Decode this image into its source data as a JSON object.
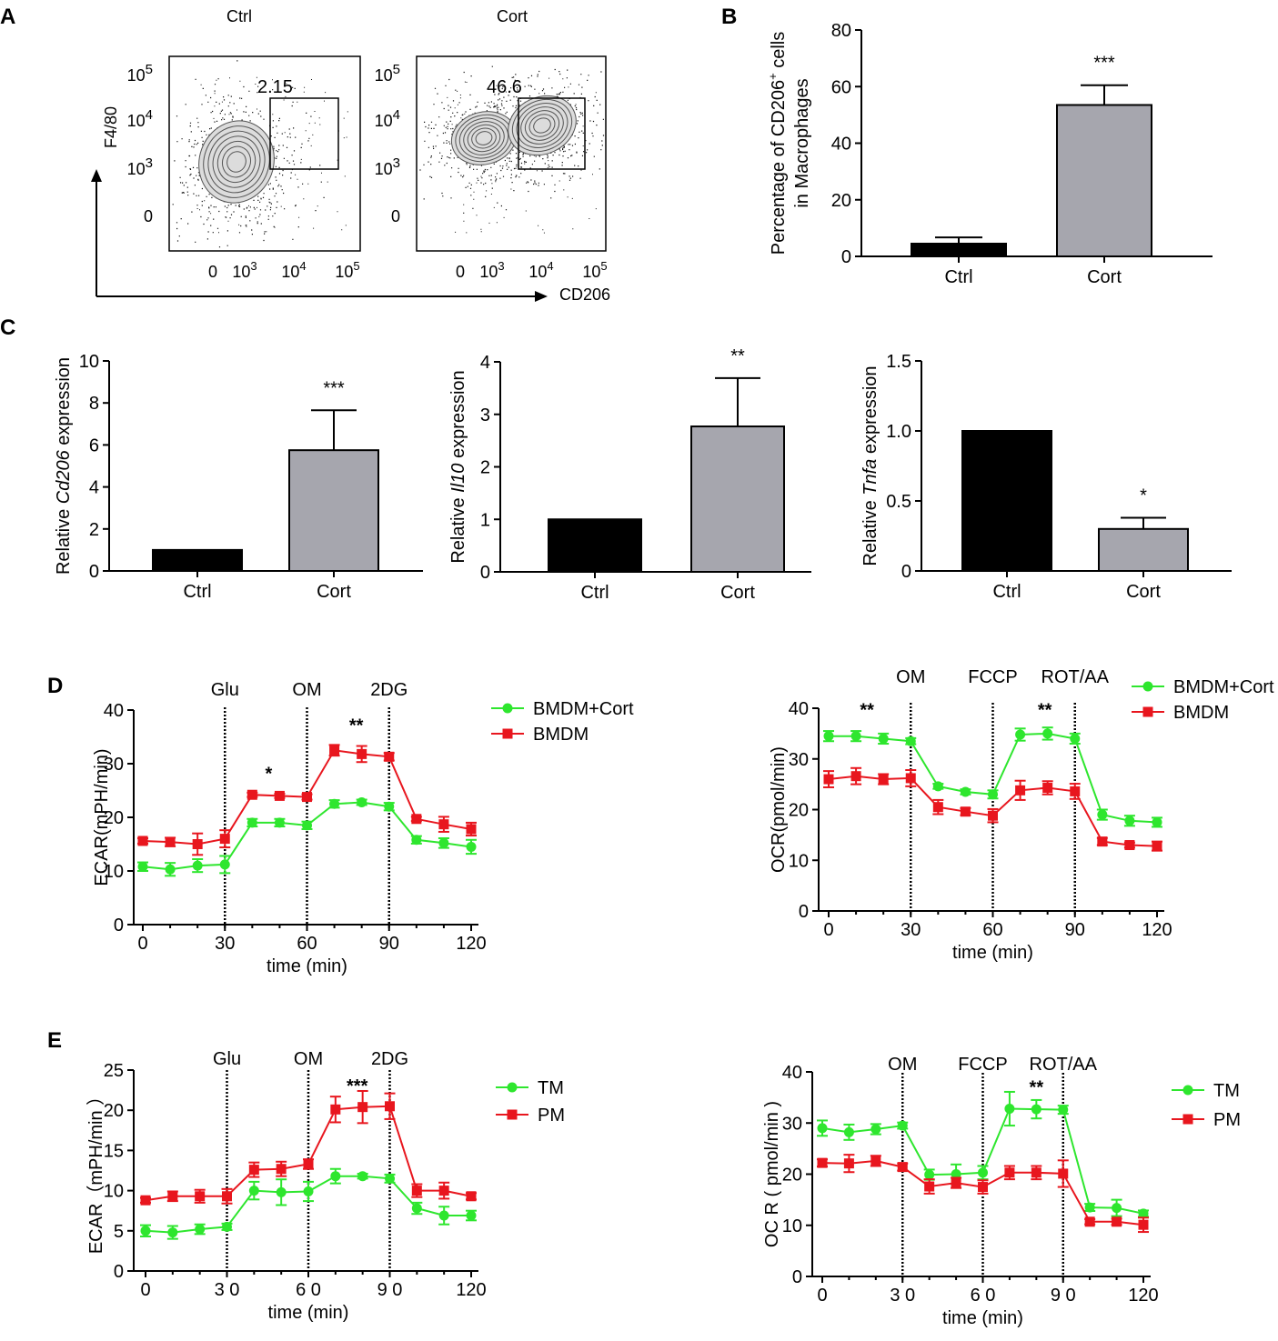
{
  "panels": {
    "A": "A",
    "B": "B",
    "C": "C",
    "D": "D",
    "E": "E"
  },
  "colors": {
    "green": "#2ee62e",
    "red": "#e8161e",
    "ctrl_bar": "#000000",
    "cort_bar": "#a6a6ae"
  },
  "flow": {
    "ctrl_title": "Ctrl",
    "cort_title": "Cort",
    "ylabel": "F4/80",
    "xlabel": "CD206",
    "ctrl_gate_pct": "2.15",
    "cort_gate_pct": "46.6",
    "ytick_labels": [
      {
        "base": "0",
        "exp": ""
      },
      {
        "base": "10",
        "exp": "3"
      },
      {
        "base": "10",
        "exp": "4"
      },
      {
        "base": "10",
        "exp": "5"
      }
    ],
    "xtick_labels": [
      {
        "base": "0",
        "exp": ""
      },
      {
        "base": "10",
        "exp": "3"
      },
      {
        "base": "10",
        "exp": "4"
      },
      {
        "base": "10",
        "exp": "5"
      }
    ]
  },
  "chart_data": [
    {
      "id": "B",
      "type": "bar",
      "ylabel_line1": "Percentage of CD206",
      "ylabel_sup": "+",
      "ylabel_line1_end": " cells",
      "ylabel_line2": "in Macrophages",
      "categories": [
        "Ctrl",
        "Cort"
      ],
      "values": [
        4.5,
        53.5
      ],
      "errors": [
        2.2,
        7.0
      ],
      "ylim": [
        0,
        80
      ],
      "yticks": [
        "0",
        "20",
        "40",
        "60",
        "80"
      ],
      "significance": "***"
    },
    {
      "id": "C1",
      "type": "bar",
      "ylabel_pre": "Relative ",
      "ylabel_gene": "Cd206",
      "ylabel_post": " expression",
      "categories": [
        "Ctrl",
        "Cort"
      ],
      "values": [
        1.0,
        5.75
      ],
      "errors": [
        0,
        1.9
      ],
      "ylim": [
        0,
        10
      ],
      "yticks": [
        "0",
        "2",
        "4",
        "6",
        "8",
        "10"
      ],
      "significance": "***"
    },
    {
      "id": "C2",
      "type": "bar",
      "ylabel_pre": "Relative ",
      "ylabel_gene": "Il10",
      "ylabel_post": " expression",
      "categories": [
        "Ctrl",
        "Cort"
      ],
      "values": [
        1.0,
        2.77
      ],
      "errors": [
        0,
        0.92
      ],
      "ylim": [
        0,
        4
      ],
      "yticks": [
        "0",
        "1",
        "2",
        "3",
        "4"
      ],
      "significance": "**"
    },
    {
      "id": "C3",
      "type": "bar",
      "ylabel_pre": "Relative ",
      "ylabel_gene": "Tnfa",
      "ylabel_post": " expression",
      "categories": [
        "Ctrl",
        "Cort"
      ],
      "values": [
        1.0,
        0.3
      ],
      "errors": [
        0,
        0.08
      ],
      "ylim": [
        0,
        1.5
      ],
      "yticks": [
        "0",
        "0.5",
        "1.0",
        "1.5"
      ],
      "significance": "*"
    },
    {
      "id": "D1",
      "type": "line",
      "ylabel": "ECAR(mPH/min)",
      "xlabel": "time (min)",
      "xlim": [
        0,
        120
      ],
      "ylim": [
        0,
        40
      ],
      "xticks": [
        "0",
        "30",
        "60",
        "90",
        "120"
      ],
      "yticks": [
        "0",
        "10",
        "20",
        "30",
        "40"
      ],
      "injections": [
        {
          "x": 30,
          "label": "Glu"
        },
        {
          "x": 60,
          "label": "OM"
        },
        {
          "x": 90,
          "label": "2DG"
        }
      ],
      "annotations": [
        {
          "x": 46,
          "y": 27,
          "text": "*"
        },
        {
          "x": 78,
          "y": 36,
          "text": "**"
        }
      ],
      "x": [
        0,
        10,
        20,
        30,
        40,
        50,
        60,
        70,
        80,
        90,
        100,
        110,
        120
      ],
      "series": [
        {
          "name": "BMDM+Cort",
          "color": "#2ee62e",
          "marker": "circle",
          "values": [
            10.8,
            10.3,
            11.0,
            11.2,
            19.0,
            19.0,
            18.5,
            22.5,
            22.8,
            22.0,
            15.8,
            15.2,
            14.5
          ],
          "errors": [
            0.8,
            1.2,
            1.2,
            1.6,
            0.7,
            0.7,
            0.7,
            0.7,
            0.5,
            0.7,
            0.7,
            0.9,
            1.3
          ]
        },
        {
          "name": "BMDM",
          "color": "#e8161e",
          "marker": "square",
          "values": [
            15.6,
            15.4,
            15.0,
            16.0,
            24.2,
            24.0,
            23.8,
            32.5,
            31.8,
            31.3,
            19.7,
            18.7,
            17.8
          ],
          "errors": [
            0.5,
            0.8,
            2.0,
            1.6,
            0.4,
            0.4,
            0.5,
            1.0,
            1.5,
            0.7,
            0.4,
            1.4,
            1.2
          ]
        }
      ]
    },
    {
      "id": "D2",
      "type": "line",
      "ylabel": "OCR(pmol/min)",
      "xlabel": "time (min)",
      "xlim": [
        0,
        120
      ],
      "ylim": [
        0,
        40
      ],
      "xticks": [
        "0",
        "30",
        "60",
        "90",
        "120"
      ],
      "yticks": [
        "0",
        "10",
        "20",
        "30",
        "40"
      ],
      "injections": [
        {
          "x": 30,
          "label": "OM"
        },
        {
          "x": 60,
          "label": "FCCP"
        },
        {
          "x": 90,
          "label": "ROT/AA"
        }
      ],
      "annotations": [
        {
          "x": 14,
          "y": 38.5,
          "text": "**"
        },
        {
          "x": 79,
          "y": 38.5,
          "text": "**"
        }
      ],
      "x": [
        0,
        10,
        20,
        30,
        40,
        50,
        60,
        70,
        80,
        90,
        100,
        110,
        120
      ],
      "series": [
        {
          "name": "BMDM+Cort",
          "color": "#2ee62e",
          "marker": "circle",
          "values": [
            34.5,
            34.5,
            34.0,
            33.5,
            24.6,
            23.5,
            23.0,
            34.8,
            35.0,
            34.0,
            19.0,
            17.8,
            17.5
          ],
          "errors": [
            1.0,
            1.0,
            1.0,
            0.6,
            0.5,
            0.5,
            0.8,
            1.2,
            1.2,
            1.0,
            1.0,
            1.0,
            0.9
          ]
        },
        {
          "name": "BMDM",
          "color": "#e8161e",
          "marker": "square",
          "values": [
            26.0,
            26.6,
            26.0,
            26.2,
            20.5,
            19.6,
            18.8,
            23.8,
            24.3,
            23.6,
            13.7,
            13.0,
            12.8
          ],
          "errors": [
            1.6,
            1.6,
            1.0,
            1.6,
            1.4,
            0.7,
            1.3,
            1.9,
            1.3,
            1.5,
            0.7,
            0.5,
            0.9
          ]
        }
      ]
    },
    {
      "id": "E1",
      "type": "line",
      "ylabel": "ECAR（mPH/min ）",
      "xlabel": "time (min)",
      "xlim": [
        0,
        120
      ],
      "ylim": [
        0,
        25
      ],
      "xticks": [
        "0",
        "3 0",
        "6 0",
        "9 0",
        "120"
      ],
      "yticks": [
        "0",
        "5",
        "10",
        "15",
        "20",
        "25"
      ],
      "injections": [
        {
          "x": 30,
          "label": "Glu"
        },
        {
          "x": 60,
          "label": "OM"
        },
        {
          "x": 90,
          "label": "2DG"
        }
      ],
      "annotations": [
        {
          "x": 78,
          "y": 22.3,
          "text": "***"
        }
      ],
      "x": [
        0,
        10,
        20,
        30,
        40,
        50,
        60,
        70,
        80,
        90,
        100,
        110,
        120
      ],
      "series": [
        {
          "name": "TM",
          "color": "#2ee62e",
          "marker": "circle",
          "values": [
            5.0,
            4.8,
            5.2,
            5.5,
            10.0,
            9.8,
            9.9,
            11.8,
            11.8,
            11.5,
            7.8,
            6.9,
            6.9
          ],
          "errors": [
            0.7,
            0.8,
            0.6,
            0.4,
            1.1,
            1.6,
            1.2,
            0.9,
            0.3,
            0.5,
            0.7,
            1.1,
            0.6
          ]
        },
        {
          "name": "PM",
          "color": "#e8161e",
          "marker": "square",
          "values": [
            8.8,
            9.3,
            9.3,
            9.3,
            12.6,
            12.7,
            13.3,
            20.1,
            20.4,
            20.5,
            10.0,
            10.0,
            9.3
          ],
          "errors": [
            0.3,
            0.6,
            0.8,
            0.9,
            0.9,
            0.9,
            0.6,
            1.6,
            2.0,
            1.6,
            0.8,
            1.0,
            0.4
          ]
        }
      ]
    },
    {
      "id": "E2",
      "type": "line",
      "ylabel": "OC R ( pmol/min )",
      "xlabel": "time (min)",
      "xlim": [
        0,
        120
      ],
      "ylim": [
        0,
        40
      ],
      "xticks": [
        "0",
        "3 0",
        "6 0",
        "9 0",
        "120"
      ],
      "yticks": [
        "0",
        "10",
        "20",
        "30",
        "40"
      ],
      "injections": [
        {
          "x": 30,
          "label": "OM"
        },
        {
          "x": 60,
          "label": "FCCP"
        },
        {
          "x": 90,
          "label": "ROT/AA"
        }
      ],
      "annotations": [
        {
          "x": 80,
          "y": 35.8,
          "text": "**"
        }
      ],
      "x": [
        0,
        10,
        20,
        30,
        40,
        50,
        60,
        70,
        80,
        90,
        100,
        110,
        120
      ],
      "series": [
        {
          "name": "TM",
          "color": "#2ee62e",
          "marker": "circle",
          "values": [
            29.0,
            28.2,
            28.8,
            29.5,
            19.9,
            20.0,
            20.3,
            32.8,
            32.7,
            32.6,
            13.5,
            13.4,
            12.3
          ],
          "errors": [
            1.5,
            1.5,
            1.0,
            0.6,
            1.0,
            1.9,
            1.3,
            3.3,
            1.8,
            0.8,
            0.7,
            1.6,
            0.6
          ]
        },
        {
          "name": "PM",
          "color": "#e8161e",
          "marker": "square",
          "values": [
            22.2,
            22.1,
            22.6,
            21.4,
            17.6,
            18.3,
            17.5,
            20.3,
            20.3,
            20.1,
            10.7,
            10.7,
            10.1
          ],
          "errors": [
            0.7,
            1.7,
            1.0,
            0.7,
            1.4,
            1.0,
            1.3,
            1.3,
            1.3,
            2.6,
            0.5,
            0.6,
            1.4
          ]
        }
      ]
    }
  ]
}
